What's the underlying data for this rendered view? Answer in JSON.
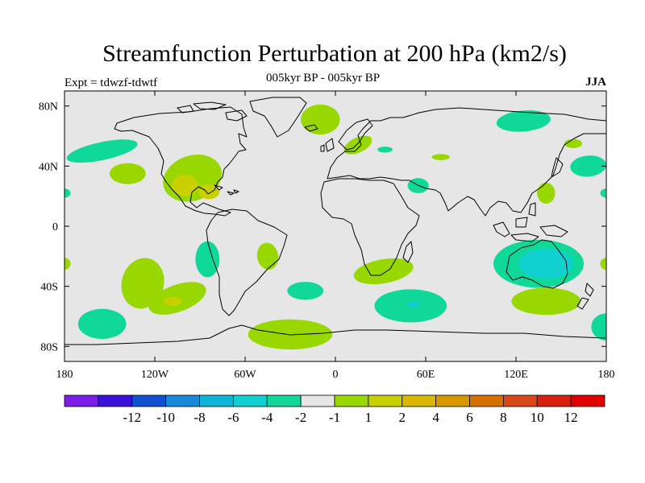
{
  "header": {
    "title": "Streamfunction Perturbation at 200 hPa (km2/s)",
    "subtitle": "005kyr BP - 005kyr BP",
    "left_label": "Expt = tdwzf-tdwtf",
    "season": "JJA"
  },
  "axes": {
    "lat_ticks": [
      {
        "value": 80,
        "label": "80N"
      },
      {
        "value": 40,
        "label": "40N"
      },
      {
        "value": 0,
        "label": "0"
      },
      {
        "value": -40,
        "label": "40S"
      },
      {
        "value": -80,
        "label": "80S"
      }
    ],
    "lon_ticks": [
      {
        "value": -180,
        "label": "180"
      },
      {
        "value": -120,
        "label": "120W"
      },
      {
        "value": -60,
        "label": "60W"
      },
      {
        "value": 0,
        "label": "0"
      },
      {
        "value": 60,
        "label": "60E"
      },
      {
        "value": 120,
        "label": "120E"
      },
      {
        "value": 180,
        "label": "180"
      }
    ],
    "lon_range": [
      -180,
      180
    ],
    "lat_range": [
      -90,
      90
    ]
  },
  "colors": {
    "zero_band": "#e6e6e6",
    "coast": "#000000"
  },
  "colorbar": {
    "colors": [
      "#7a1ee8",
      "#3a10dc",
      "#1050d2",
      "#1888d8",
      "#10b4d8",
      "#10d0d0",
      "#10d898",
      "#e6e6e6",
      "#98d800",
      "#c8d000",
      "#d8b800",
      "#d89800",
      "#d87000",
      "#d84818",
      "#d82010",
      "#e00000"
    ],
    "labels": [
      "-12",
      "-10",
      "-8",
      "-6",
      "-4",
      "-2",
      "-1",
      "1",
      "2",
      "4",
      "6",
      "8",
      "10",
      "12"
    ]
  },
  "chart_data": {
    "type": "heatmap",
    "title": "Streamfunction Perturbation at 200 hPa (km2/s)",
    "season": "JJA",
    "regions": [
      {
        "lon": -155,
        "lat": 50,
        "rlon": 24,
        "rlat": 6,
        "rot": -12,
        "level": -1
      },
      {
        "lon": -138,
        "lat": 35,
        "rlon": 12,
        "rlat": 7,
        "rot": 0,
        "level": 1
      },
      {
        "lon": -95,
        "lat": 32,
        "rlon": 20,
        "rlat": 15,
        "rot": -20,
        "level": 1
      },
      {
        "lon": -100,
        "lat": 27,
        "rlon": 9,
        "rlat": 7,
        "rot": 0,
        "level": 2
      },
      {
        "lon": -84,
        "lat": 23,
        "rlon": 7,
        "rlat": 5,
        "rot": 0,
        "level": 2
      },
      {
        "lon": -10,
        "lat": 71,
        "rlon": 13,
        "rlat": 10,
        "rot": 0,
        "level": 1
      },
      {
        "lon": 15,
        "lat": 54,
        "rlon": 10,
        "rlat": 5,
        "rot": -25,
        "level": 1
      },
      {
        "lon": 33,
        "lat": 51,
        "rlon": 5,
        "rlat": 2,
        "rot": 0,
        "level": -1
      },
      {
        "lon": 70,
        "lat": 46,
        "rlon": 6,
        "rlat": 2,
        "rot": 0,
        "level": 1
      },
      {
        "lon": 55,
        "lat": 27,
        "rlon": 7,
        "rlat": 5,
        "rot": 0,
        "level": -1
      },
      {
        "lon": 125,
        "lat": 70,
        "rlon": 18,
        "rlat": 7,
        "rot": -5,
        "level": -1
      },
      {
        "lon": 158,
        "lat": 55,
        "rlon": 6,
        "rlat": 3,
        "rot": 0,
        "level": 1
      },
      {
        "lon": 168,
        "lat": 40,
        "rlon": 12,
        "rlat": 7,
        "rot": -5,
        "level": -1
      },
      {
        "lon": 140,
        "lat": 22,
        "rlon": 6,
        "rlat": 7,
        "rot": 0,
        "level": 1
      },
      {
        "lon": 180,
        "lat": 22,
        "rlon": 4,
        "rlat": 3,
        "rot": 0,
        "level": -1
      },
      {
        "lon": -180,
        "lat": 22,
        "rlon": 4,
        "rlat": 3,
        "rot": 0,
        "level": -1
      },
      {
        "lon": -128,
        "lat": -38,
        "rlon": 14,
        "rlat": 17,
        "rot": 15,
        "level": 1
      },
      {
        "lon": -105,
        "lat": -48,
        "rlon": 20,
        "rlat": 9,
        "rot": -20,
        "level": 1
      },
      {
        "lon": -108,
        "lat": -50,
        "rlon": 6,
        "rlat": 3,
        "rot": 0,
        "level": 2
      },
      {
        "lon": -155,
        "lat": -65,
        "rlon": 16,
        "rlat": 10,
        "rot": 0,
        "level": -1
      },
      {
        "lon": -85,
        "lat": -22,
        "rlon": 8,
        "rlat": 12,
        "rot": 0,
        "level": -1
      },
      {
        "lon": -45,
        "lat": -20,
        "rlon": 7,
        "rlat": 9,
        "rot": -10,
        "level": 1
      },
      {
        "lon": -20,
        "lat": -43,
        "rlon": 12,
        "rlat": 6,
        "rot": 0,
        "level": -1
      },
      {
        "lon": -30,
        "lat": -72,
        "rlon": 28,
        "rlat": 10,
        "rot": 0,
        "level": 1
      },
      {
        "lon": 50,
        "lat": -53,
        "rlon": 24,
        "rlat": 11,
        "rot": 0,
        "level": -1
      },
      {
        "lon": 52,
        "lat": -52,
        "rlon": 4,
        "rlat": 2,
        "rot": 0,
        "level": -2
      },
      {
        "lon": 32,
        "lat": -30,
        "rlon": 20,
        "rlat": 8,
        "rot": -10,
        "level": 1
      },
      {
        "lon": 135,
        "lat": -25,
        "rlon": 30,
        "rlat": 16,
        "rot": 0,
        "level": -1
      },
      {
        "lon": 140,
        "lat": -25,
        "rlon": 18,
        "rlat": 10,
        "rot": 0,
        "level": -2
      },
      {
        "lon": 140,
        "lat": -50,
        "rlon": 23,
        "rlat": 9,
        "rot": 0,
        "level": 1
      },
      {
        "lon": 180,
        "lat": -25,
        "rlon": 4,
        "rlat": 4,
        "rot": 0,
        "level": 1
      },
      {
        "lon": -180,
        "lat": -25,
        "rlon": 4,
        "rlat": 4,
        "rot": 0,
        "level": 1
      },
      {
        "lon": 180,
        "lat": -67,
        "rlon": 10,
        "rlat": 9,
        "rot": 0,
        "level": -1
      }
    ]
  }
}
